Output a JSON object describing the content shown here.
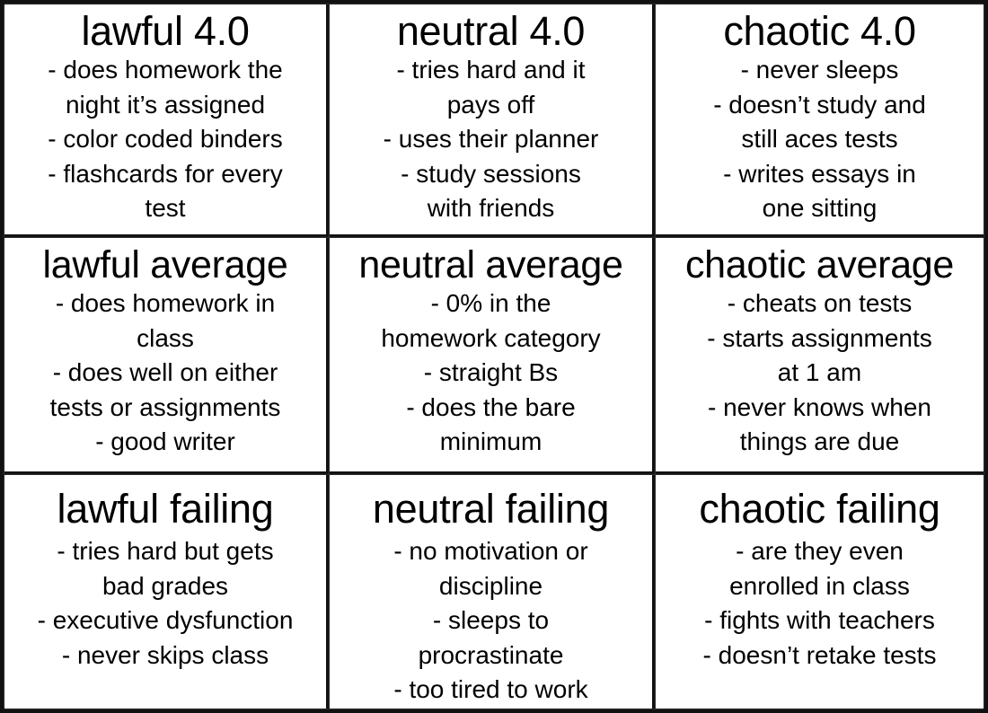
{
  "cells": [
    {
      "title": "lawful 4.0",
      "lines": [
        "- does homework the",
        "night it’s assigned",
        "- color coded binders",
        "- flashcards for every",
        "test"
      ]
    },
    {
      "title": "neutral 4.0",
      "lines": [
        "- tries hard and it",
        "pays off",
        "- uses their planner",
        "- study sessions",
        "with friends"
      ]
    },
    {
      "title": "chaotic 4.0",
      "lines": [
        "- never sleeps",
        "- doesn’t study and",
        "still aces tests",
        "- writes essays in",
        "one sitting"
      ]
    },
    {
      "title": "lawful average",
      "lines": [
        "- does homework in",
        "class",
        "- does well on either",
        "tests or assignments",
        "- good writer"
      ]
    },
    {
      "title": "neutral average",
      "lines": [
        "- 0% in the",
        "homework category",
        "- straight Bs",
        "- does the bare",
        "minimum"
      ]
    },
    {
      "title": "chaotic average",
      "lines": [
        "- cheats on tests",
        "- starts assignments",
        "at 1 am",
        "- never knows when",
        "things are due"
      ]
    },
    {
      "title": "lawful failing",
      "lines": [
        "- tries hard but gets",
        "bad grades",
        "- executive dysfunction",
        "- never skips class"
      ]
    },
    {
      "title": "neutral failing",
      "lines": [
        "- no motivation or",
        "discipline",
        "- sleeps to",
        "procrastinate",
        "- too tired to work"
      ]
    },
    {
      "title": "chaotic failing",
      "lines": [
        "- are they even",
        "enrolled in class",
        "- fights with teachers",
        "- doesn’t retake tests"
      ]
    }
  ]
}
